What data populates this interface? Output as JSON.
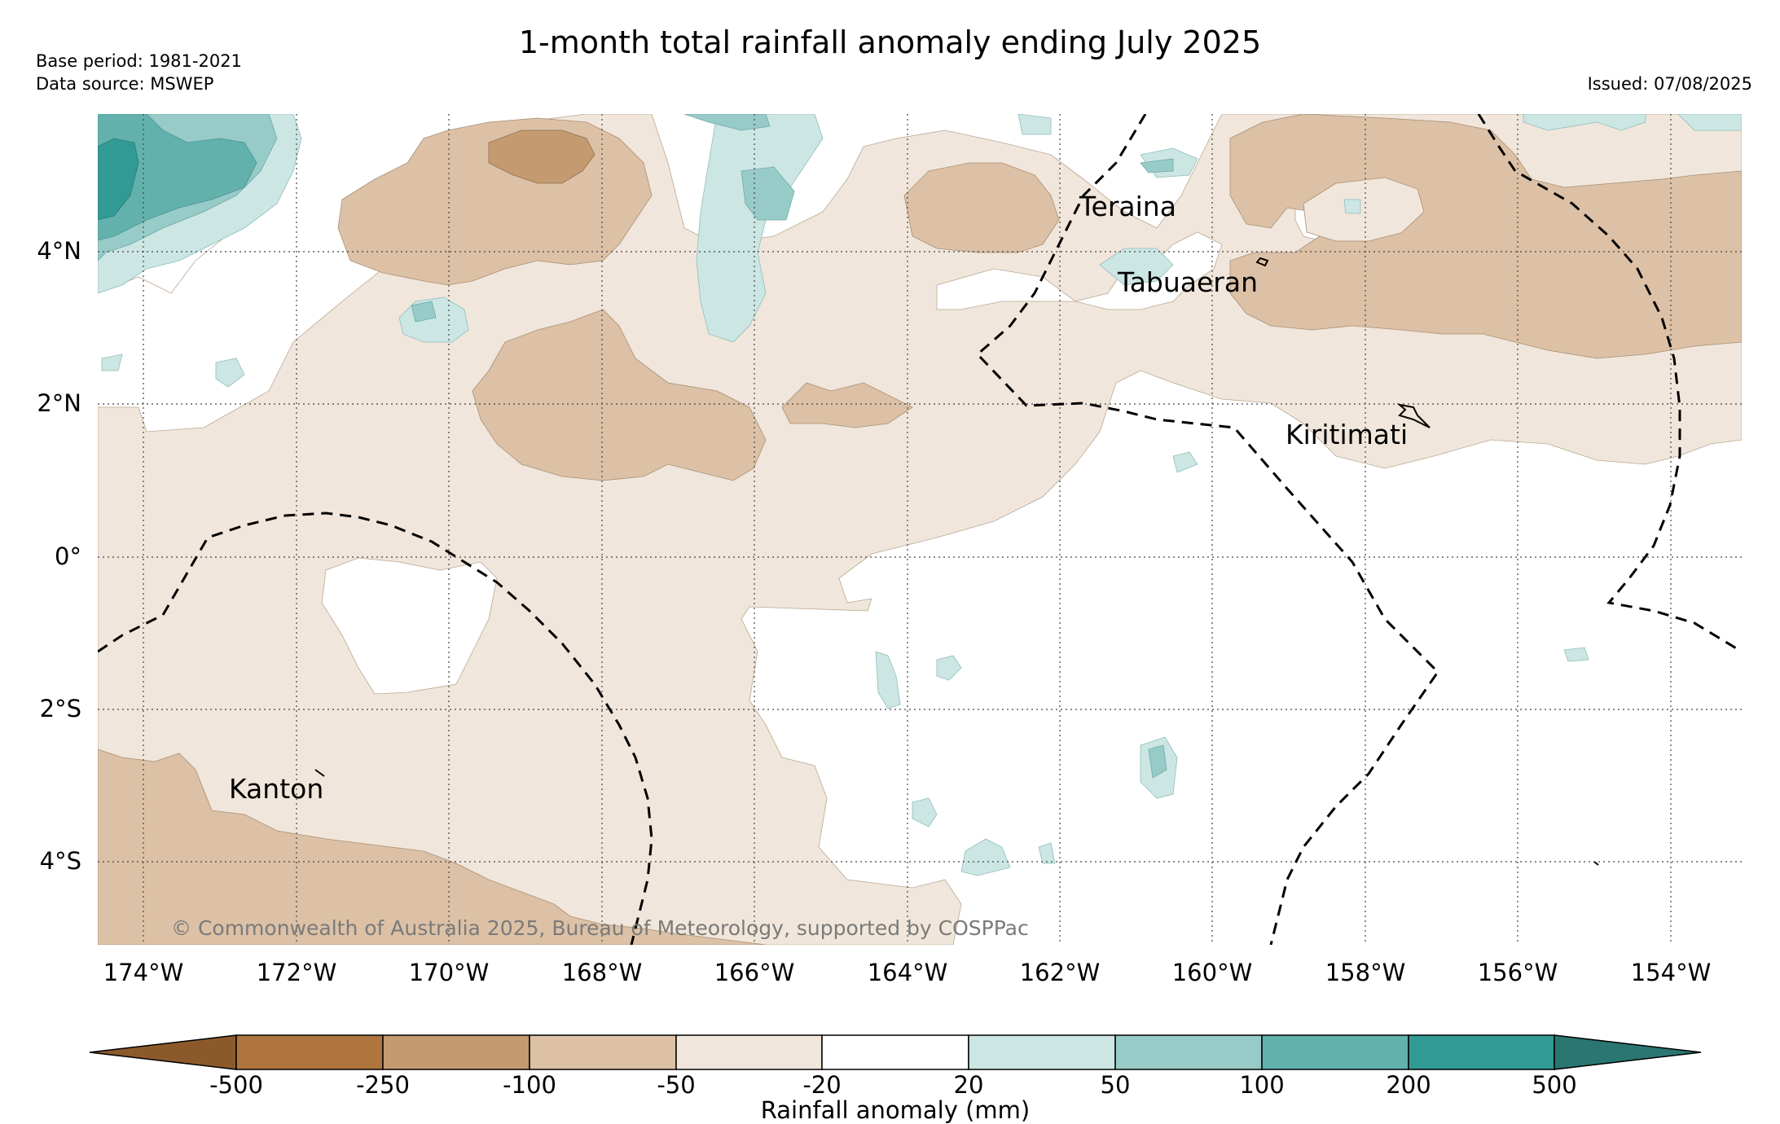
{
  "header": {
    "title": "1-month total rainfall anomaly ending July 2025",
    "base_period": "Base period: 1981-2021",
    "data_source": "Data source: MSWEP",
    "issued": "Issued: 07/08/2025"
  },
  "map": {
    "lon_range": [
      -174.6,
      -152.9
    ],
    "lat_range": [
      -5.1,
      5.8
    ],
    "lon_ticks": [
      "174°W",
      "172°W",
      "170°W",
      "168°W",
      "166°W",
      "164°W",
      "162°W",
      "160°W",
      "158°W",
      "156°W",
      "154°W"
    ],
    "lat_ticks": [
      "4°N",
      "2°N",
      "0°",
      "2°S",
      "4°S"
    ],
    "places": [
      {
        "name": "Teraina",
        "lon": -161.0,
        "lat": 4.7
      },
      {
        "name": "Tabuaeran",
        "lon": -159.4,
        "lat": 3.85
      },
      {
        "name": "Kiritimati",
        "lon": -157.4,
        "lat": 1.85
      },
      {
        "name": "Kanton",
        "lon": -171.7,
        "lat": -2.8
      }
    ],
    "copyright": "© Commonwealth of Australia 2025, Bureau of Meteorology, supported by COSPPac"
  },
  "colorbar": {
    "label": "Rainfall anomaly (mm)",
    "ticks": [
      "-500",
      "-250",
      "-100",
      "-50",
      "-20",
      "20",
      "50",
      "100",
      "200",
      "500"
    ],
    "colors": [
      "#8c5a2a",
      "#ae763e",
      "#c49a70",
      "#dcc1a6",
      "#f1e6db",
      "#ffffff",
      "#cce6e4",
      "#97cbc8",
      "#62b1ad",
      "#329a94",
      "#2a7672"
    ]
  }
}
